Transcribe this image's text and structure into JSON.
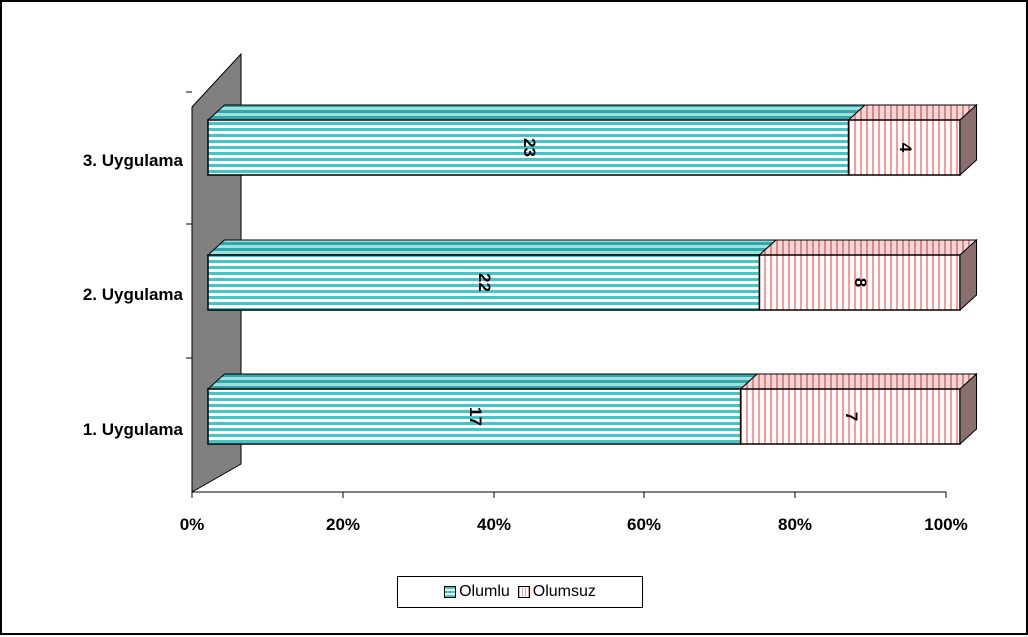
{
  "chart_data": {
    "type": "bar",
    "orientation": "horizontal",
    "stacked": "percent",
    "categories": [
      "1. Uygulama",
      "2. Uygulama",
      "3. Uygulama"
    ],
    "series": [
      {
        "name": "Olumlu",
        "values": [
          17,
          22,
          23
        ],
        "color": "#40C8C8",
        "pattern": "horizontal-stripes"
      },
      {
        "name": "Olumsuz",
        "values": [
          7,
          8,
          4
        ],
        "color": "#FF9999",
        "pattern": "vertical-stripes"
      }
    ],
    "xticks": [
      "0%",
      "20%",
      "40%",
      "60%",
      "80%",
      "100%"
    ],
    "xlim": [
      0,
      100
    ],
    "grid": false,
    "three_d": true,
    "legend_position": "bottom"
  },
  "legend": {
    "items": [
      {
        "label": "Olumlu",
        "color": "#40C8C8"
      },
      {
        "label": "Olumsuz",
        "color": "#FF9999"
      }
    ]
  }
}
